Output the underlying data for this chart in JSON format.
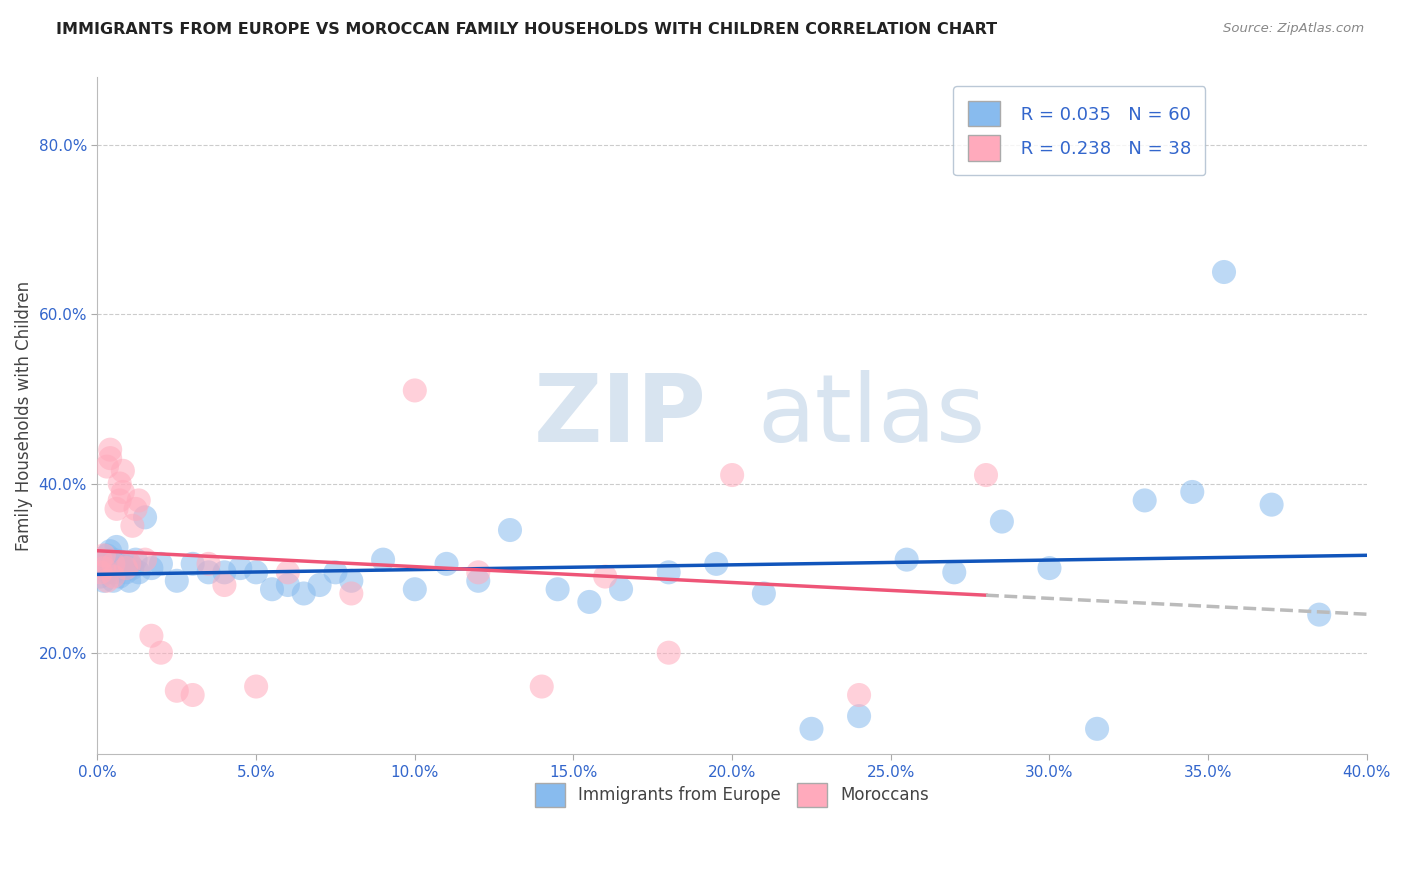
{
  "title": "IMMIGRANTS FROM EUROPE VS MOROCCAN FAMILY HOUSEHOLDS WITH CHILDREN CORRELATION CHART",
  "source": "Source: ZipAtlas.com",
  "xlabel_blue": "Immigrants from Europe",
  "xlabel_pink": "Moroccans",
  "ylabel": "Family Households with Children",
  "watermark_zip": "ZIP",
  "watermark_atlas": "atlas",
  "blue_R": 0.035,
  "blue_N": 60,
  "pink_R": 0.238,
  "pink_N": 38,
  "blue_color": "#88BBEE",
  "pink_color": "#FFAABC",
  "blue_line_color": "#1155BB",
  "pink_line_color": "#EE5577",
  "xlim": [
    0.0,
    0.4
  ],
  "ylim": [
    0.08,
    0.88
  ],
  "xticks": [
    0.0,
    0.05,
    0.1,
    0.15,
    0.2,
    0.25,
    0.3,
    0.35,
    0.4
  ],
  "yticks": [
    0.2,
    0.4,
    0.6,
    0.8
  ],
  "background_color": "#ffffff",
  "grid_color": "#cccccc",
  "legend_R_color": "#3366CC",
  "legend_N_color": "#3366CC",
  "tick_color": "#3366CC",
  "blue_x": [
    0.001,
    0.001,
    0.002,
    0.002,
    0.003,
    0.003,
    0.004,
    0.004,
    0.005,
    0.005,
    0.005,
    0.006,
    0.006,
    0.007,
    0.007,
    0.008,
    0.009,
    0.01,
    0.01,
    0.011,
    0.012,
    0.013,
    0.015,
    0.017,
    0.02,
    0.025,
    0.03,
    0.035,
    0.04,
    0.045,
    0.05,
    0.055,
    0.06,
    0.065,
    0.07,
    0.075,
    0.08,
    0.09,
    0.1,
    0.11,
    0.12,
    0.13,
    0.145,
    0.155,
    0.165,
    0.18,
    0.195,
    0.21,
    0.225,
    0.24,
    0.255,
    0.27,
    0.285,
    0.3,
    0.315,
    0.33,
    0.345,
    0.355,
    0.37,
    0.385
  ],
  "blue_y": [
    0.29,
    0.31,
    0.285,
    0.305,
    0.295,
    0.315,
    0.3,
    0.32,
    0.295,
    0.31,
    0.285,
    0.305,
    0.325,
    0.29,
    0.308,
    0.3,
    0.295,
    0.285,
    0.305,
    0.3,
    0.31,
    0.295,
    0.36,
    0.3,
    0.305,
    0.285,
    0.305,
    0.295,
    0.295,
    0.3,
    0.295,
    0.275,
    0.28,
    0.27,
    0.28,
    0.295,
    0.285,
    0.31,
    0.275,
    0.305,
    0.285,
    0.345,
    0.275,
    0.26,
    0.275,
    0.295,
    0.305,
    0.27,
    0.11,
    0.125,
    0.31,
    0.295,
    0.355,
    0.3,
    0.11,
    0.38,
    0.39,
    0.65,
    0.375,
    0.245
  ],
  "pink_x": [
    0.001,
    0.001,
    0.002,
    0.002,
    0.003,
    0.003,
    0.004,
    0.004,
    0.005,
    0.005,
    0.006,
    0.007,
    0.007,
    0.008,
    0.008,
    0.009,
    0.01,
    0.011,
    0.012,
    0.013,
    0.015,
    0.017,
    0.02,
    0.025,
    0.03,
    0.035,
    0.04,
    0.05,
    0.06,
    0.08,
    0.1,
    0.12,
    0.14,
    0.16,
    0.2,
    0.24,
    0.28,
    0.18
  ],
  "pink_y": [
    0.295,
    0.31,
    0.3,
    0.315,
    0.285,
    0.42,
    0.43,
    0.44,
    0.29,
    0.305,
    0.37,
    0.38,
    0.4,
    0.39,
    0.415,
    0.3,
    0.305,
    0.35,
    0.37,
    0.38,
    0.31,
    0.22,
    0.2,
    0.155,
    0.15,
    0.305,
    0.28,
    0.16,
    0.295,
    0.27,
    0.51,
    0.295,
    0.16,
    0.29,
    0.41,
    0.15,
    0.41,
    0.2
  ]
}
